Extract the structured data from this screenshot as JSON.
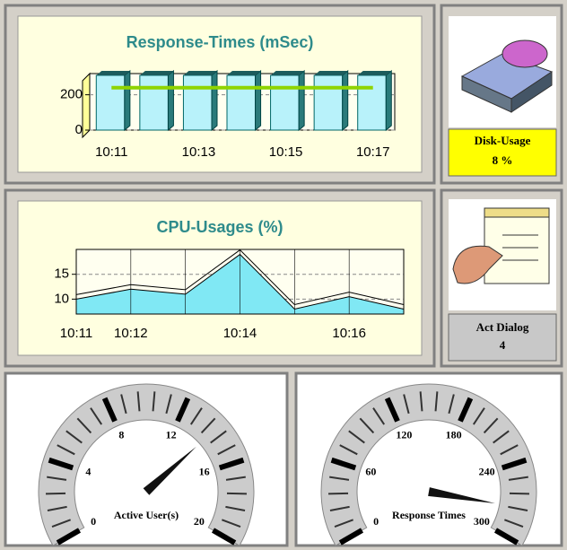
{
  "chart_data": [
    {
      "type": "bar",
      "title": "Response-Times (mSec)",
      "categories": [
        "10:11",
        null,
        "10:13",
        null,
        "10:15",
        null,
        "10:17"
      ],
      "values": [
        310,
        310,
        310,
        310,
        310,
        310,
        310
      ],
      "line_values": [
        240,
        240,
        240,
        240,
        240,
        240,
        240
      ],
      "color": "#b8f2fa",
      "line_color": "#8fd400",
      "ylim": [
        0,
        320
      ],
      "yticks": [
        0,
        200
      ],
      "grid": true
    },
    {
      "type": "area",
      "title": "CPU-Usages (%)",
      "categories": [
        "10:11",
        "10:12",
        null,
        "10:14",
        null,
        "10:16",
        null
      ],
      "values": [
        10,
        12,
        11,
        19,
        8,
        10.5,
        8
      ],
      "color": "#80e8f4",
      "ylim": [
        7,
        20
      ],
      "yticks": [
        10,
        15
      ],
      "grid": true
    },
    {
      "type": "gauge",
      "label": "Active User(s)",
      "value": 14,
      "lim": [
        0,
        20
      ],
      "ticks": [
        0,
        4,
        8,
        12,
        16,
        20
      ]
    },
    {
      "type": "gauge",
      "label": "Response Times",
      "value": 275,
      "lim": [
        0,
        300
      ],
      "ticks": [
        0,
        60,
        120,
        180,
        240,
        300
      ]
    }
  ],
  "panels": [
    {
      "label": "Disk-Usage",
      "value": "8 %",
      "color": "#ffff00"
    },
    {
      "label": "Act Dialog",
      "value": "4",
      "color": "#d4d0c8"
    }
  ]
}
